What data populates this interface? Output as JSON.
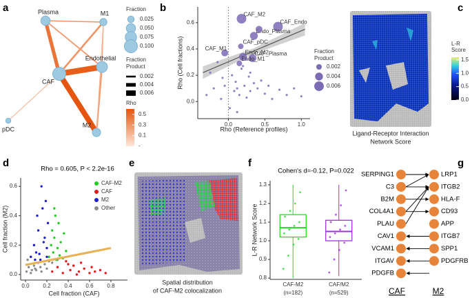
{
  "network": {
    "label": "a",
    "nodes": [
      {
        "label": "Plasma",
        "fraction": 0.05
      },
      {
        "label": "M1",
        "fraction": 0.03
      },
      {
        "label": "Endothelial",
        "fraction": 0.07
      },
      {
        "label": "CAF",
        "fraction": 0.1
      },
      {
        "label": "pDC",
        "fraction": 0.015
      },
      {
        "label": "M2",
        "fraction": 0.04
      }
    ],
    "edges": [
      {
        "source": 3,
        "target": 2,
        "rho": 0.55,
        "product": 0.0065
      },
      {
        "source": 3,
        "target": 5,
        "rho": 0.6,
        "product": 0.006
      },
      {
        "source": 3,
        "target": 0,
        "rho": 0.45,
        "product": 0.004
      },
      {
        "source": 3,
        "target": 1,
        "rho": 0.3,
        "product": 0.002
      },
      {
        "source": 3,
        "target": 4,
        "rho": 0.15,
        "product": 0.0008
      },
      {
        "source": 0,
        "target": 1,
        "rho": 0.3,
        "product": 0.0012
      },
      {
        "source": 0,
        "target": 2,
        "rho": 0.25,
        "product": 0.0015
      },
      {
        "source": 1,
        "target": 2,
        "rho": 0.2,
        "product": 0.001
      },
      {
        "source": 2,
        "target": 5,
        "rho": 0.25,
        "product": 0.0018
      },
      {
        "source": 1,
        "target": 5,
        "rho": 0.15,
        "product": 0.0007
      }
    ],
    "fraction_title": "Fraction",
    "fraction_ticks": [
      0.025,
      {
        "value": 0.05,
        "label": "0.050"
      },
      0.075,
      {
        "value": 0.1,
        "label": "0.100"
      }
    ],
    "product_title": [
      "Fraction",
      "Product"
    ],
    "product_ticks": [
      0.002,
      0.004,
      0.006
    ],
    "rho_title": "Rho",
    "rho_ticks": [
      0.5,
      0.3,
      0.1,
      {
        "value": -0.1,
        "label": "-"
      }
    ],
    "rho_lim": [
      -0.1,
      0.6
    ]
  },
  "chart_data": [
    {
      "type": "scatter",
      "label": "b",
      "xlabel": "Rho (Reference profiles)",
      "ylabel": "Rho (Cell fractions)",
      "xlim": [
        -0.42,
        1.12
      ],
      "ylim": [
        -0.13,
        0.72
      ],
      "xticks": [
        {
          "value": 0,
          "label": "0.0"
        },
        0.5,
        {
          "value": 1,
          "label": "1.0"
        }
      ],
      "yticks": [
        {
          "value": 0,
          "label": "0.0"
        },
        0.2,
        0.4,
        0.6
      ],
      "color": "#7b6bb5",
      "x": [
        0.18,
        0.68,
        0.35,
        0.17,
        -0.05,
        0.2,
        0.33,
        0.15,
        0.42,
        -0.3,
        -0.25,
        -0.2,
        -0.15,
        -0.1,
        -0.08,
        -0.05,
        0.02,
        0.05,
        0.08,
        0.1,
        0.12,
        0.15,
        0.18,
        0.22,
        0.25,
        0.28,
        0.3,
        0.35,
        0.4,
        0.45,
        0.5,
        0.55,
        0.6,
        0.7,
        0.8,
        0.9,
        1.0,
        0.12,
        0.2,
        0.3,
        0.25
      ],
      "y": [
        0.63,
        0.57,
        0.5,
        0.42,
        0.37,
        0.34,
        0.33,
        0.29,
        0.55,
        0.05,
        0.22,
        0.1,
        0.3,
        0.02,
        0.18,
        0.12,
        -0.05,
        0.2,
        0.08,
        0.15,
        0.1,
        0.05,
        0.25,
        0.12,
        0.03,
        0.19,
        0.08,
        0.14,
        0.1,
        0.16,
        0.06,
        0.12,
        0.02,
        0.09,
        0.05,
        0.1,
        0.04,
        -0.08,
        0.27,
        0.22,
        0.32
      ],
      "sizes": [
        0.006,
        0.006,
        0.004,
        0.002,
        0.003,
        0.004,
        0.004,
        0.002,
        0.003,
        0.0003,
        0.0003,
        0.0003,
        0.0003,
        0.0003,
        0.0003,
        0.0003,
        0.0003,
        0.0003,
        0.0003,
        0.0003,
        0.0003,
        0.0003,
        0.0003,
        0.0003,
        0.0003,
        0.0003,
        0.0003,
        0.0003,
        0.0003,
        0.0003,
        0.0003,
        0.0003,
        0.0003,
        0.0003,
        0.0003,
        0.0003,
        0.0003,
        0.0003,
        0.0003,
        0.0003,
        0.0003
      ],
      "labels": [
        "CAF_M2",
        "CAF_Endo",
        "Endo_Plasma",
        "CAF_pDC",
        "CAF_M1",
        "Endo_M2",
        "CAF_Plasma",
        "Endo_M1",
        null,
        null,
        null,
        null,
        null,
        null,
        null,
        null,
        null,
        null,
        null,
        null,
        null,
        null,
        null,
        null,
        null,
        null,
        null,
        null,
        null,
        null,
        null,
        null,
        null,
        null,
        null,
        null,
        null,
        null,
        null,
        null,
        null
      ],
      "fit_line": {
        "x": [
          -0.35,
          1.05
        ],
        "y": [
          0.22,
          0.55
        ]
      },
      "size_legend_title": [
        "Fraction",
        "Product"
      ],
      "size_ticks": [
        0.002,
        0.004,
        0.006
      ]
    },
    {
      "type": "scatter",
      "label": "d",
      "title": "Rho = 0.605, P < 2.2e-16",
      "xlabel": "Cell fraction (CAF)",
      "ylabel": "Cell fraction (M2)",
      "xlim": [
        -0.045,
        0.955
      ],
      "ylim": [
        -0.038,
        0.657
      ],
      "xticks": [
        {
          "value": 0,
          "label": "0.0"
        },
        0.2,
        0.4,
        0.6,
        0.8
      ],
      "yticks": [
        {
          "value": 0,
          "label": "0.0"
        },
        0.2,
        0.4,
        0.6
      ],
      "series": [
        {
          "name": "CAF-M2",
          "color": "#22cc22",
          "x": [
            0.22,
            0.24,
            0.25,
            0.26,
            0.27,
            0.28,
            0.29,
            0.3,
            0.31,
            0.32,
            0.33,
            0.35,
            0.36,
            0.38,
            0.27
          ],
          "y": [
            0.12,
            0.2,
            0.3,
            0.15,
            0.25,
            0.4,
            0.1,
            0.18,
            0.35,
            0.13,
            0.22,
            0.11,
            0.28,
            0.16,
            0.45
          ]
        },
        {
          "name": "CAF",
          "color": "#e41a1c",
          "x": [
            0.25,
            0.3,
            0.35,
            0.4,
            0.42,
            0.45,
            0.5,
            0.52,
            0.55,
            0.6,
            0.62,
            0.65,
            0.7,
            0.75,
            0.38,
            0.48
          ],
          "y": [
            0.02,
            0.05,
            0.01,
            0.07,
            0.03,
            0.06,
            0.02,
            0.08,
            0.04,
            0.01,
            0.05,
            0.02,
            0.03,
            0.01,
            0.09,
            0.0
          ]
        },
        {
          "name": "M2",
          "color": "#1f1fcc",
          "x": [
            0.05,
            0.08,
            0.1,
            0.12,
            0.14,
            0.15,
            0.16,
            0.18,
            0.19,
            0.2,
            0.21,
            0.17,
            0.13,
            0.11,
            0.09,
            0.2
          ],
          "y": [
            0.12,
            0.2,
            0.15,
            0.3,
            0.1,
            0.6,
            0.45,
            0.25,
            0.5,
            0.18,
            0.35,
            0.22,
            0.14,
            0.4,
            0.1,
            0.12
          ]
        },
        {
          "name": "Other",
          "color": "#8c8c8c",
          "x": [
            0.01,
            0.03,
            0.05,
            0.08,
            0.1,
            0.12,
            0.15,
            0.18,
            0.2,
            0.22,
            0.02,
            0.06,
            0.14,
            0.25,
            0.3,
            0.09
          ],
          "y": [
            0.02,
            0.05,
            0.01,
            0.06,
            0.03,
            0.08,
            0.02,
            0.07,
            0.04,
            0.09,
            0.1,
            0.03,
            0.05,
            0.08,
            0.1,
            0.04
          ]
        }
      ],
      "fit_line": {
        "x": [
          0,
          0.8
        ],
        "y": [
          0.065,
          0.18
        ],
        "color": "#e8b050"
      }
    },
    {
      "type": "box",
      "label": "f",
      "title": "Cohen's d=-0.12, P=0.022",
      "ylabel": "L-R Network Score",
      "ylim": [
        0.793,
        1.322
      ],
      "yticks": [
        0.8,
        0.9,
        {
          "value": 1,
          "label": "1.0"
        },
        1.1,
        1.2,
        1.3
      ],
      "categories": [
        [
          "CAF-M2",
          "(n=182)"
        ],
        [
          "CAF/M2",
          "(n=529)"
        ]
      ],
      "colors": [
        "#22dd22",
        "#a030e0"
      ],
      "boxes": [
        {
          "whisker_low": 0.8,
          "q1": 1.02,
          "median": 1.07,
          "q3": 1.14,
          "whisker_high": 1.3
        },
        {
          "whisker_low": 0.81,
          "q1": 1.0,
          "median": 1.05,
          "q3": 1.11,
          "whisker_high": 1.3
        }
      ],
      "points": [
        [
          0.85,
          0.92,
          0.98,
          1.01,
          1.04,
          1.06,
          1.08,
          1.1,
          1.13,
          1.16,
          1.2,
          1.26
        ],
        [
          0.83,
          0.9,
          0.95,
          0.99,
          1.02,
          1.04,
          1.06,
          1.08,
          1.1,
          1.14,
          1.19,
          1.27
        ]
      ]
    }
  ],
  "spatial_maps": [
    {
      "label": "c",
      "title_lines": [
        "Ligand-Receptor Interaction",
        "Network Score"
      ],
      "colorbar_title": [
        "L-R",
        "Score"
      ],
      "colorbar_ticks": [
        1.5,
        {
          "value": 1,
          "label": "1.0"
        },
        0.5,
        {
          "value": 0,
          "label": "0.0"
        }
      ],
      "colorbar_lim": [
        0,
        1.6
      ]
    },
    {
      "label": "e",
      "title_lines": [
        "Spatial distribution",
        "of CAF-M2 colocalization"
      ]
    }
  ],
  "lr_pairs": {
    "label": "g",
    "ligands": [
      "SERPING1",
      "C3",
      "B2M",
      "COL4A1",
      "PLAU",
      "CAV1",
      "VCAM1",
      "ITGAV",
      "PDGFB"
    ],
    "receptors": [
      "LRP1",
      "ITGB2",
      "HLA-F",
      "CD93",
      "APP",
      "ITGB7",
      "SPP1",
      "PDGFRB"
    ],
    "links_ligand_to_receptor": [
      [
        0,
        0
      ],
      [
        1,
        0
      ],
      [
        1,
        1
      ],
      [
        2,
        2
      ],
      [
        3,
        3
      ],
      [
        3,
        1
      ],
      [
        4,
        1
      ]
    ],
    "links_receptor_to_ligand": [
      [
        4,
        5
      ],
      [
        5,
        6
      ],
      [
        6,
        7
      ],
      [
        7,
        8
      ]
    ],
    "footer": [
      "CAF",
      "M2"
    ]
  }
}
